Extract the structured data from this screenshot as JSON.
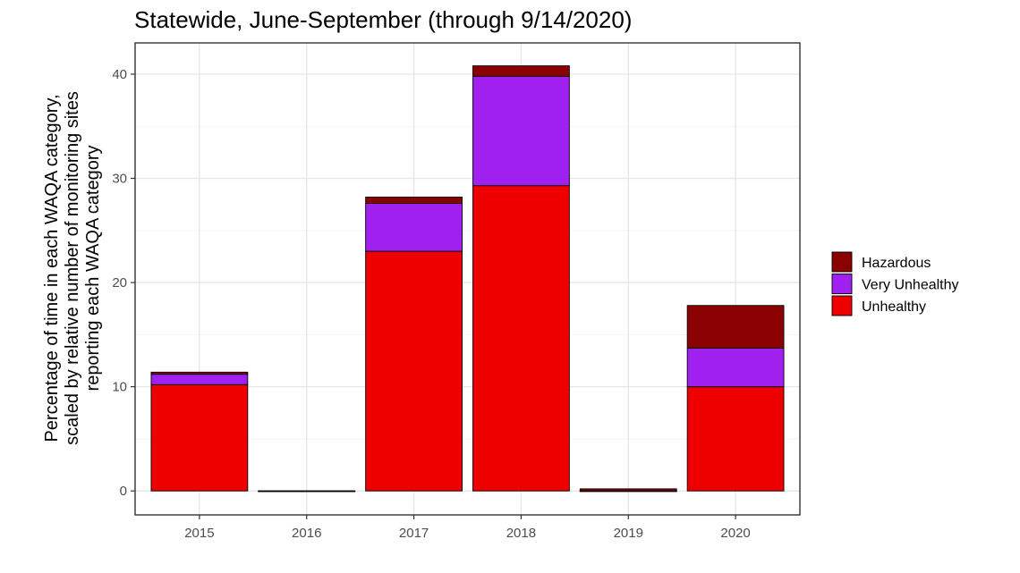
{
  "chart_data": {
    "type": "bar",
    "stacked": true,
    "title": "Statewide, June-September (through 9/14/2020)",
    "ylabel_lines": [
      "Percentage of time in each WAQA category,",
      "scaled by relative number of monitoring sites",
      "reporting each WAQA category"
    ],
    "xlabel": "",
    "categories": [
      "2015",
      "2016",
      "2017",
      "2018",
      "2019",
      "2020"
    ],
    "series": [
      {
        "name": "Unhealthy",
        "color": "#ee0000",
        "values": [
          10.2,
          0.0,
          23.0,
          29.3,
          0.0,
          10.0
        ]
      },
      {
        "name": "Very Unhealthy",
        "color": "#a020f0",
        "values": [
          1.0,
          0.0,
          4.6,
          10.5,
          0.0,
          3.7
        ]
      },
      {
        "name": "Hazardous",
        "color": "#8b0000",
        "values": [
          0.2,
          0.0,
          0.6,
          1.0,
          0.2,
          4.1
        ]
      }
    ],
    "ylim": [
      -2.3,
      43
    ],
    "yticks": [
      0,
      10,
      20,
      30,
      40
    ],
    "grid": true,
    "legend_position": "right",
    "legend_order": [
      "Hazardous",
      "Very Unhealthy",
      "Unhealthy"
    ]
  }
}
